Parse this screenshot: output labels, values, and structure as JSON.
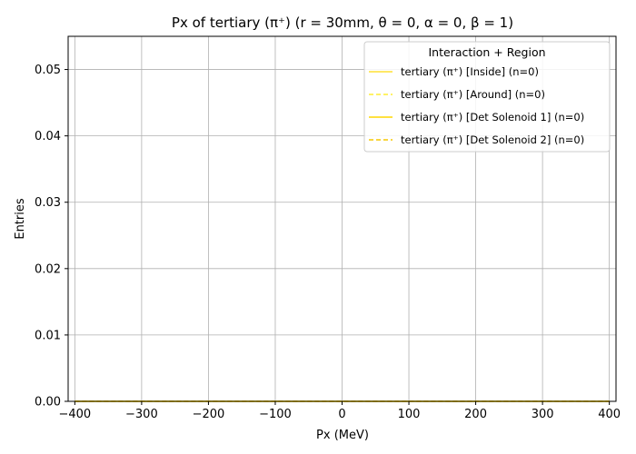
{
  "chart_data": {
    "type": "line",
    "title": "Px of tertiary (π⁺) (r = 30mm, θ = 0, α = 0, β = 1)",
    "xlabel": "Px (MeV)",
    "ylabel": "Entries",
    "xlim": [
      -410,
      410
    ],
    "ylim": [
      0,
      0.055
    ],
    "xticks": [
      -400,
      -300,
      -200,
      -100,
      0,
      100,
      200,
      300,
      400
    ],
    "xtick_labels": [
      "−400",
      "−300",
      "−200",
      "−100",
      "0",
      "100",
      "200",
      "300",
      "400"
    ],
    "yticks": [
      0,
      0.01,
      0.02,
      0.03,
      0.04,
      0.05
    ],
    "ytick_labels": [
      "0.00",
      "0.01",
      "0.02",
      "0.03",
      "0.04",
      "0.05"
    ],
    "grid": true,
    "legend_title": "Interaction + Region",
    "legend_position": "top-right",
    "series": [
      {
        "name": "tertiary (π⁺) [Inside] (n=0)",
        "color": "#ffe033",
        "dash": "solid",
        "x": [
          -400,
          400
        ],
        "y": [
          0,
          0
        ]
      },
      {
        "name": "tertiary (π⁺) [Around] (n=0)",
        "color": "#ffee33",
        "dash": "dashed",
        "x": [
          -400,
          400
        ],
        "y": [
          0,
          0
        ]
      },
      {
        "name": "tertiary (π⁺) [Det Solenoid 1] (n=0)",
        "color": "#ffd700",
        "dash": "solid",
        "x": [
          -400,
          400
        ],
        "y": [
          0,
          0
        ]
      },
      {
        "name": "tertiary (π⁺) [Det Solenoid 2] (n=0)",
        "color": "#f5c800",
        "dash": "dashed",
        "x": [
          -400,
          400
        ],
        "y": [
          0,
          0
        ]
      }
    ]
  }
}
